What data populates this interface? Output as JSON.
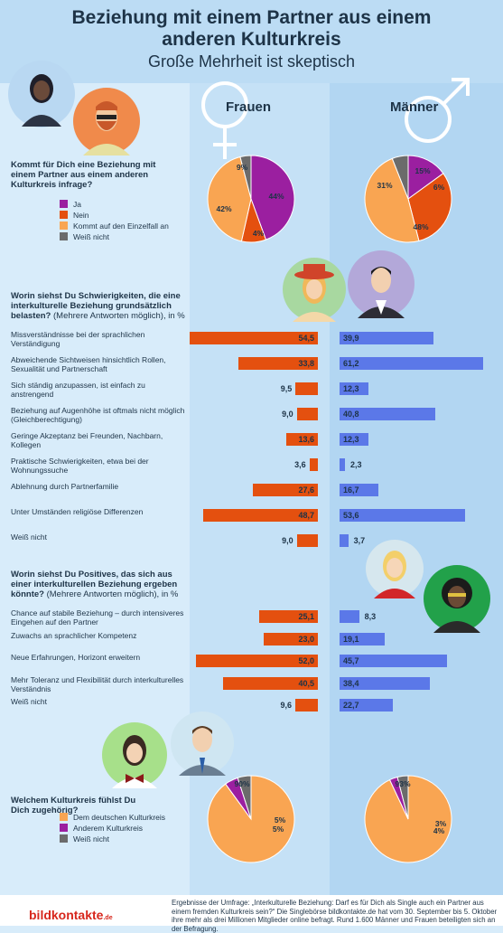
{
  "header": {
    "title_line1": "Beziehung mit einem Partner aus einem",
    "title_line2": "anderen Kulturkreis",
    "subtitle": "Große Mehrheit ist skeptisch"
  },
  "columns": {
    "women": "Frauen",
    "men": "Männer"
  },
  "colors": {
    "ja": "#9b1fa0",
    "nein": "#e4500f",
    "einzelfall": "#f9a552",
    "weiss": "#6b6b6b",
    "women_bar": "#e4500f",
    "men_bar": "#5b78e8",
    "deutsch": "#f9a552",
    "anderem": "#9b1fa0"
  },
  "q1": {
    "text_bold": "Kommt für Dich eine Beziehung mit einem Partner aus einem anderen Kulturkreis infrage?",
    "legend": [
      "Ja",
      "Nein",
      "Kommt auf den Einzelfall an",
      "Weiß nicht"
    ],
    "women_labels": [
      "44%",
      "9%",
      "42%",
      "4%"
    ],
    "men_labels": [
      "15%",
      "31%",
      "48%",
      "6%"
    ]
  },
  "q2": {
    "text_bold": "Worin siehst Du Schwierigkeiten, die eine interkulturelle Beziehung grundsätzlich belasten?",
    "text_normal": "(Mehrere Antworten möglich), in %",
    "items": [
      {
        "label": "Missverständnisse bei der sprachlichen Verständigung",
        "w": "54,5",
        "m": "39,9"
      },
      {
        "label": "Abweichende Sichtweisen hinsichtlich Rollen, Sexualität und Partnerschaft",
        "w": "33,8",
        "m": "61,2"
      },
      {
        "label": "Sich ständig anzupassen, ist einfach zu anstrengend",
        "w": "9,5",
        "m": "12,3"
      },
      {
        "label": "Beziehung auf Augenhöhe ist oftmals nicht möglich (Gleichberechtigung)",
        "w": "9,0",
        "m": "40,8"
      },
      {
        "label": "Geringe Akzeptanz bei Freunden, Nachbarn, Kollegen",
        "w": "13,6",
        "m": "12,3"
      },
      {
        "label": "Praktische Schwierigkeiten, etwa bei der Wohnungssuche",
        "w": "3,6",
        "m": "2,3"
      },
      {
        "label": "Ablehnung durch Partnerfamilie",
        "w": "27,6",
        "m": "16,7"
      },
      {
        "label": "Unter Umständen religiöse Differenzen",
        "w": "48,7",
        "m": "53,6"
      },
      {
        "label": "Weiß nicht",
        "w": "9,0",
        "m": "3,7"
      }
    ]
  },
  "q3": {
    "text_bold": "Worin siehst Du Positives, das sich aus einer interkulturellen Beziehung ergeben könnte?",
    "text_normal": "(Mehrere Antworten möglich), in %",
    "items": [
      {
        "label": "Chance auf stabile Beziehung – durch intensiveres Eingehen auf den Partner",
        "w": "25,1",
        "m": "8,3"
      },
      {
        "label": "Zuwachs an sprachlicher Kompetenz",
        "w": "23,0",
        "m": "19,1"
      },
      {
        "label": "Neue Erfahrungen, Horizont erweitern",
        "w": "52,0",
        "m": "45,7"
      },
      {
        "label": "Mehr Toleranz und Flexibilität durch interkulturelles Verständnis",
        "w": "40,5",
        "m": "38,4"
      },
      {
        "label": "Weiß nicht",
        "w": "9,6",
        "m": "22,7"
      }
    ]
  },
  "q4": {
    "text_bold": "Welchem Kulturkreis fühlst Du Dich zugehörig?",
    "legend": [
      "Dem deutschen Kulturkreis",
      "Anderem Kulturkreis",
      "Weiß nicht"
    ],
    "women_labels": [
      "90%",
      "5%",
      "5%"
    ],
    "men_labels": [
      "93%",
      "3%",
      "4%"
    ]
  },
  "footer": {
    "text": "Ergebnisse der Umfrage: „Interkulturelle Beziehung: Darf es für Dich als Single auch ein Partner aus einem fremden Kulturkreis sein?“ Die Singlebörse bildkontakte.de hat vom 30. September bis 5. Oktober ihre mehr als drei Millionen Mitglieder online befragt. Rund 1.600 Männer und Frauen beteiligten sich an der Befragung.",
    "logo": "bildkontakte",
    "logo_suffix": ".de"
  },
  "chart_data": [
    {
      "type": "pie",
      "title": "Kommt für Dich eine Beziehung mit einem Partner aus einem anderen Kulturkreis infrage?",
      "series": [
        {
          "name": "Frauen",
          "categories": [
            "Ja",
            "Nein",
            "Kommt auf den Einzelfall an",
            "Weiß nicht"
          ],
          "values": [
            44,
            9,
            42,
            4
          ]
        },
        {
          "name": "Männer",
          "categories": [
            "Ja",
            "Nein",
            "Kommt auf den Einzelfall an",
            "Weiß nicht"
          ],
          "values": [
            15,
            31,
            48,
            6
          ]
        }
      ]
    },
    {
      "type": "bar",
      "title": "Worin siehst Du Schwierigkeiten, die eine interkulturelle Beziehung grundsätzlich belasten?",
      "categories": [
        "Missverständnisse bei der sprachlichen Verständigung",
        "Abweichende Sichtweisen hinsichtlich Rollen, Sexualität und Partnerschaft",
        "Sich ständig anzupassen, ist einfach zu anstrengend",
        "Beziehung auf Augenhöhe ist oftmals nicht möglich (Gleichberechtigung)",
        "Geringe Akzeptanz bei Freunden, Nachbarn, Kollegen",
        "Praktische Schwierigkeiten, etwa bei der Wohnungssuche",
        "Ablehnung durch Partnerfamilie",
        "Unter Umständen religiöse Differenzen",
        "Weiß nicht"
      ],
      "series": [
        {
          "name": "Frauen",
          "values": [
            54.5,
            33.8,
            9.5,
            9.0,
            13.6,
            3.6,
            27.6,
            48.7,
            9.0
          ]
        },
        {
          "name": "Männer",
          "values": [
            39.9,
            61.2,
            12.3,
            40.8,
            12.3,
            2.3,
            16.7,
            53.6,
            3.7
          ]
        }
      ]
    },
    {
      "type": "bar",
      "title": "Worin siehst Du Positives, das sich aus einer interkulturellen Beziehung ergeben könnte?",
      "categories": [
        "Chance auf stabile Beziehung – durch intensiveres Eingehen auf den Partner",
        "Zuwachs an sprachlicher Kompetenz",
        "Neue Erfahrungen, Horizont erweitern",
        "Mehr Toleranz und Flexibilität durch interkulturelles Verständnis",
        "Weiß nicht"
      ],
      "series": [
        {
          "name": "Frauen",
          "values": [
            25.1,
            23.0,
            52.0,
            40.5,
            9.6
          ]
        },
        {
          "name": "Männer",
          "values": [
            8.3,
            19.1,
            45.7,
            38.4,
            22.7
          ]
        }
      ]
    },
    {
      "type": "pie",
      "title": "Welchem Kulturkreis fühlst Du Dich zugehörig?",
      "series": [
        {
          "name": "Frauen",
          "categories": [
            "Dem deutschen Kulturkreis",
            "Anderem Kulturkreis",
            "Weiß nicht"
          ],
          "values": [
            90,
            5,
            5
          ]
        },
        {
          "name": "Männer",
          "categories": [
            "Dem deutschen Kulturkreis",
            "Anderem Kulturkreis",
            "Weiß nicht"
          ],
          "values": [
            93,
            3,
            4
          ]
        }
      ]
    }
  ]
}
